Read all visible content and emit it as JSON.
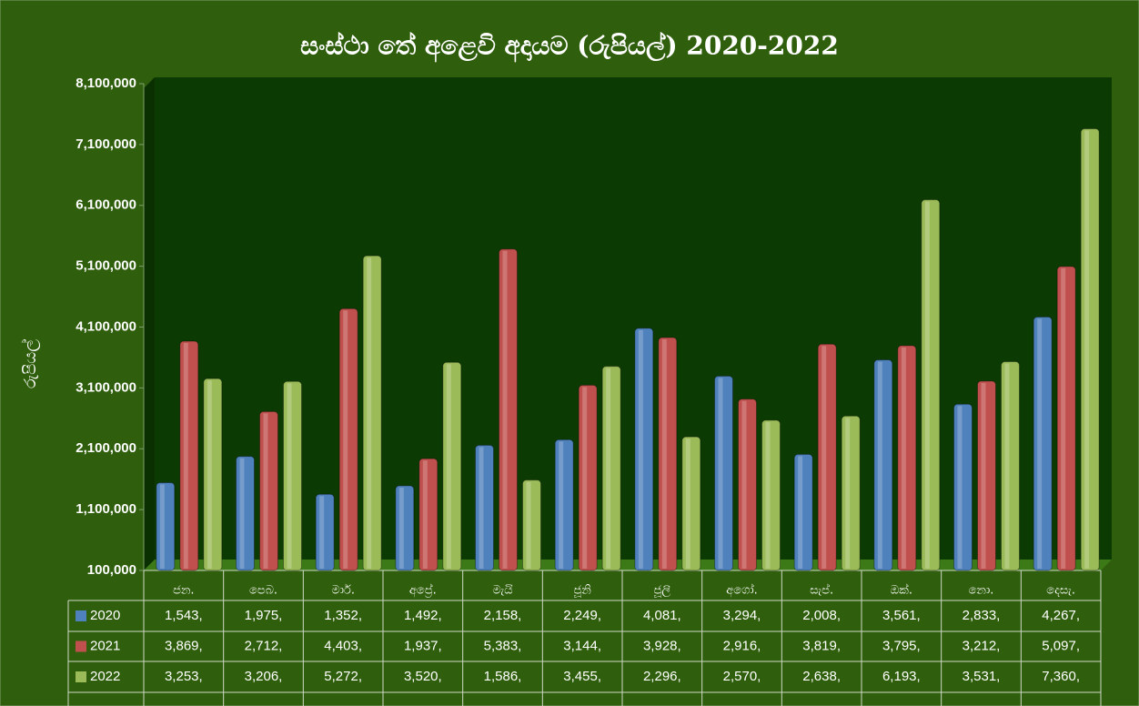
{
  "chart_data": {
    "type": "bar",
    "title": "සංස්ථා තේ අළෙවි අදායම (රුපියල්) 2020-2022",
    "y_label": "රුපියල්",
    "categories": [
      "ජන.",
      "පෙබ.",
      "මාර්.",
      "අප්‍රේ.",
      "මැයි",
      "ජූනි",
      "ජූලි",
      "අගෝ.",
      "සැප්.",
      "ඔක්.",
      "නො.",
      "දෙසැ."
    ],
    "series": [
      {
        "name": "2020",
        "color": "#4f81bd",
        "values": [
          1543000,
          1975000,
          1352000,
          1492000,
          2158000,
          2249000,
          4081000,
          3294000,
          2008000,
          3561000,
          2833000,
          4267000
        ],
        "value_labels": [
          "1,543,",
          "1,975,",
          "1,352,",
          "1,492,",
          "2,158,",
          "2,249,",
          "4,081,",
          "3,294,",
          "2,008,",
          "3,561,",
          "2,833,",
          "4,267,"
        ]
      },
      {
        "name": "2021",
        "color": "#c0504d",
        "values": [
          3869000,
          2712000,
          4403000,
          1937000,
          5383000,
          3144000,
          3928000,
          2916000,
          3819000,
          3795000,
          3212000,
          5097000
        ],
        "value_labels": [
          "3,869,",
          "2,712,",
          "4,403,",
          "1,937,",
          "5,383,",
          "3,144,",
          "3,928,",
          "2,916,",
          "3,819,",
          "3,795,",
          "3,212,",
          "5,097,"
        ]
      },
      {
        "name": "2022",
        "color": "#9bbb59",
        "values": [
          3253000,
          3206000,
          5272000,
          3520000,
          1586000,
          3455000,
          2296000,
          2570000,
          2638000,
          6193000,
          3531000,
          7360000
        ],
        "value_labels": [
          "3,253,",
          "3,206,",
          "5,272,",
          "3,520,",
          "1,586,",
          "3,455,",
          "2,296,",
          "2,570,",
          "2,638,",
          "6,193,",
          "3,531,",
          "7,360,"
        ]
      }
    ],
    "ylim": [
      100000,
      8100000
    ],
    "yticks": [
      {
        "value": 100000,
        "label": "100,000"
      },
      {
        "value": 1100000,
        "label": "1,100,000"
      },
      {
        "value": 2100000,
        "label": "2,100,000"
      },
      {
        "value": 3100000,
        "label": "3,100,000"
      },
      {
        "value": 4100000,
        "label": "4,100,000"
      },
      {
        "value": 5100000,
        "label": "5,100,000"
      },
      {
        "value": 6100000,
        "label": "6,100,000"
      },
      {
        "value": 7100000,
        "label": "7,100,000"
      },
      {
        "value": 8100000,
        "label": "8,100,000"
      }
    ],
    "grid": false
  }
}
